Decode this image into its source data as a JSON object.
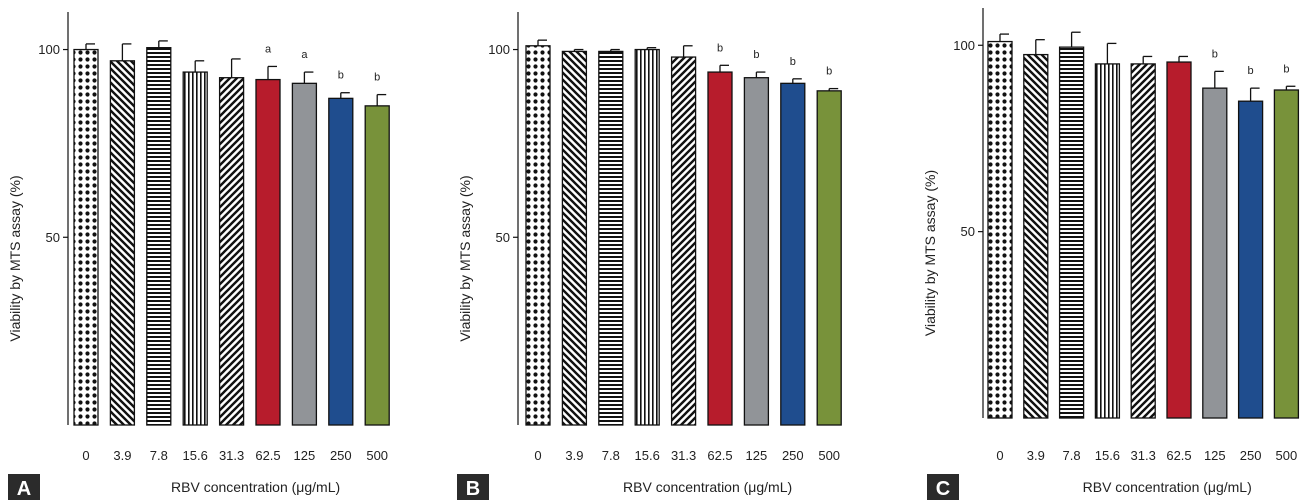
{
  "colors": {
    "red": "#b71c2c",
    "gray": "#919498",
    "blue": "#1f4d8e",
    "green": "#78923a",
    "black": "#111111",
    "panel_label_bg": "#2b2b2b"
  },
  "chart_data": [
    {
      "type": "bar",
      "panel_label": "A",
      "xlabel": "RBV concentration (μg/mL)",
      "ylabel": "Viability by MTS assay (%)",
      "ylim": [
        0,
        110
      ],
      "yticks": [
        50,
        100
      ],
      "grid": false,
      "legend": "none",
      "categories": [
        "0",
        "3.9",
        "7.8",
        "15.6",
        "31.3",
        "62.5",
        "125",
        "250",
        "500"
      ],
      "values": [
        100,
        97,
        100.5,
        94,
        92.5,
        92,
        91,
        87,
        85
      ],
      "errors": [
        1.5,
        4.5,
        1.8,
        3,
        5,
        3.5,
        3,
        1.5,
        3
      ],
      "significance": [
        "",
        "",
        "",
        "",
        "",
        "a",
        "a",
        "b",
        "b"
      ],
      "fills": [
        "dots",
        "diag-back",
        "horiz",
        "vert",
        "diag-fwd",
        "red",
        "gray",
        "blue",
        "green"
      ]
    },
    {
      "type": "bar",
      "panel_label": "B",
      "xlabel": "RBV concentration (μg/mL)",
      "ylabel": "Viability by MTS assay (%)",
      "ylim": [
        0,
        110
      ],
      "yticks": [
        50,
        100
      ],
      "grid": false,
      "legend": "none",
      "categories": [
        "0",
        "3.9",
        "7.8",
        "15.6",
        "31.3",
        "62.5",
        "125",
        "250",
        "500"
      ],
      "values": [
        101,
        99.5,
        99.5,
        100,
        98,
        94,
        92.5,
        91,
        89
      ],
      "errors": [
        1.5,
        0.5,
        0.5,
        0.5,
        3,
        1.8,
        1.5,
        1.2,
        0.6
      ],
      "significance": [
        "",
        "",
        "",
        "",
        "",
        "b",
        "b",
        "b",
        "b"
      ],
      "fills": [
        "dots",
        "diag-back",
        "horiz",
        "vert",
        "diag-fwd",
        "red",
        "gray",
        "blue",
        "green"
      ]
    },
    {
      "type": "bar",
      "panel_label": "C",
      "xlabel": "RBV concentration (μg/mL)",
      "ylabel": "Viability by MTS assay (%)",
      "ylim": [
        0,
        110
      ],
      "yticks": [
        50,
        100
      ],
      "grid": false,
      "legend": "none",
      "categories": [
        "0",
        "3.9",
        "7.8",
        "15.6",
        "31.3",
        "62.5",
        "125",
        "250",
        "500"
      ],
      "values": [
        101,
        97.5,
        99.5,
        95,
        95,
        95.5,
        88.5,
        85,
        88
      ],
      "errors": [
        2,
        4,
        4,
        5.5,
        2,
        1.5,
        4.5,
        3.5,
        1
      ],
      "significance": [
        "",
        "",
        "",
        "",
        "",
        "",
        "b",
        "b",
        "b"
      ],
      "fills": [
        "dots",
        "diag-back",
        "horiz",
        "vert",
        "diag-fwd",
        "red",
        "gray",
        "blue",
        "green"
      ]
    }
  ]
}
